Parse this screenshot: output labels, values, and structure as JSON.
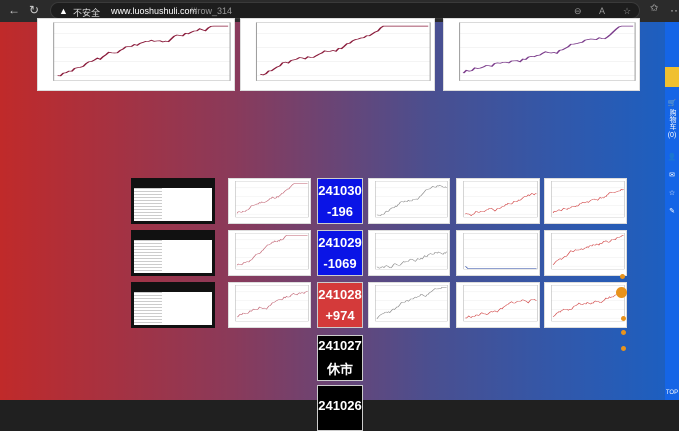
{
  "browser": {
    "security_label": "不安全",
    "url_host": "www.luoshushuli.com",
    "url_path": "/#row_314",
    "back_icon": "arrow-left",
    "reload_icon": "reload",
    "more": "···"
  },
  "sidebar": {
    "cart_label": "购物车",
    "cart_count": "(0)",
    "top_label": "TOP"
  },
  "days": [
    {
      "date": "241030",
      "change": "-196",
      "color": "#0a14e6"
    },
    {
      "date": "241029",
      "change": "-1069",
      "color": "#0a14e6"
    },
    {
      "date": "241028",
      "change": "+974",
      "color": "#d43a3a"
    },
    {
      "date": "241027",
      "change": "休市",
      "color": "#000000"
    },
    {
      "date": "241026",
      "change": "",
      "color": "#000000"
    }
  ]
}
